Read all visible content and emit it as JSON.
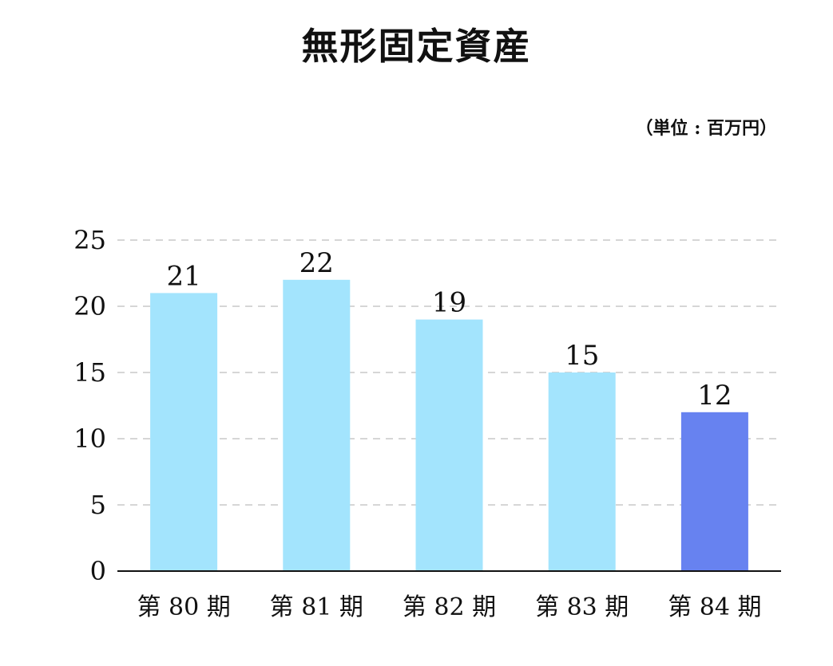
{
  "chart_data": {
    "type": "bar",
    "title": "無形固定資産",
    "unit_label": "（単位 : 百万円）",
    "categories": [
      "第 80 期",
      "第 81 期",
      "第 82 期",
      "第 83 期",
      "第 84 期"
    ],
    "values": [
      21,
      22,
      19,
      15,
      12
    ],
    "ylim": [
      0,
      25
    ],
    "yticks": [
      0,
      5,
      10,
      15,
      20,
      25
    ],
    "grid": true,
    "bar_colors": [
      "#a3e4fd",
      "#a3e4fd",
      "#a3e4fd",
      "#a3e4fd",
      "#6782f0"
    ],
    "grid_color": "#c8c8c8",
    "axis_color": "#111111"
  }
}
